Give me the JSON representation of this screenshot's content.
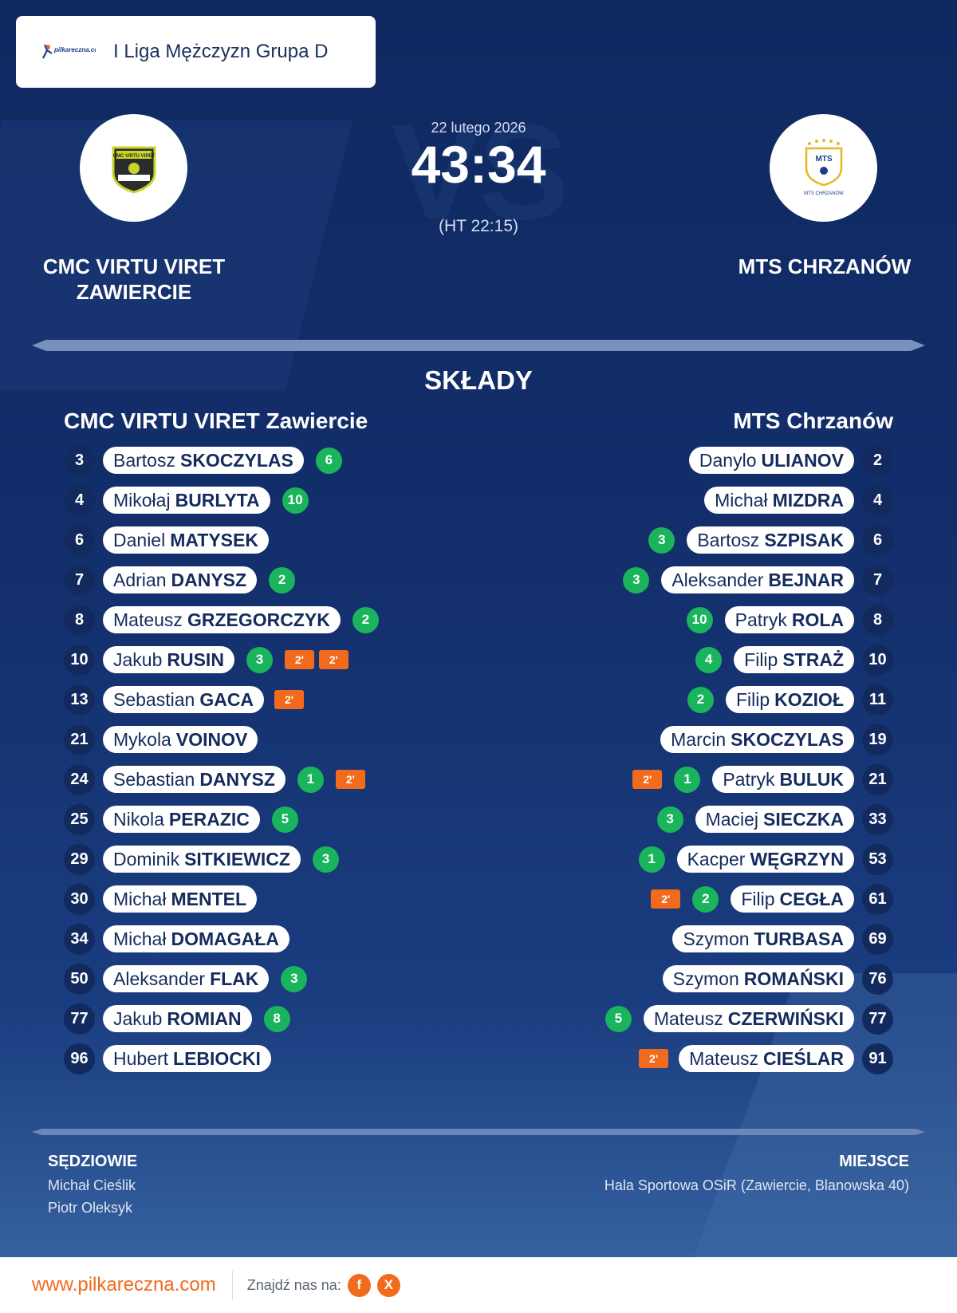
{
  "header": {
    "site_logo_text": "pilkareczna.com",
    "league": "I Liga Mężczyzn Grupa D"
  },
  "match": {
    "date": "22 lutego 2026",
    "score": "43:34",
    "half_time": "(HT 22:15)",
    "vs_watermark": "VS",
    "home": {
      "name": "CMC VIRTU VIRET ZAWIERCIE",
      "crest_text": "CMC VIRTU VIRET"
    },
    "away": {
      "name": "MTS CHRZANÓW",
      "crest_text": "MTS CHRZANÓW"
    }
  },
  "lineups": {
    "title": "SKŁADY",
    "home_team": "CMC VIRTU VIRET Zawiercie",
    "away_team": "MTS Chrzanów",
    "home": [
      {
        "number": "3",
        "first": "Bartosz",
        "last": "SKOCZYLAS",
        "goals": "6",
        "suspensions": []
      },
      {
        "number": "4",
        "first": "Mikołaj",
        "last": "BURLYTA",
        "goals": "10",
        "suspensions": []
      },
      {
        "number": "6",
        "first": "Daniel",
        "last": "MATYSEK",
        "goals": "",
        "suspensions": []
      },
      {
        "number": "7",
        "first": "Adrian",
        "last": "DANYSZ",
        "goals": "2",
        "suspensions": []
      },
      {
        "number": "8",
        "first": "Mateusz",
        "last": "GRZEGORCZYK",
        "goals": "2",
        "suspensions": []
      },
      {
        "number": "10",
        "first": "Jakub",
        "last": "RUSIN",
        "goals": "3",
        "suspensions": [
          "2'",
          "2'"
        ]
      },
      {
        "number": "13",
        "first": "Sebastian",
        "last": "GACA",
        "goals": "",
        "suspensions": [
          "2'"
        ]
      },
      {
        "number": "21",
        "first": "Mykola",
        "last": "VOINOV",
        "goals": "",
        "suspensions": []
      },
      {
        "number": "24",
        "first": "Sebastian",
        "last": "DANYSZ",
        "goals": "1",
        "suspensions": [
          "2'"
        ]
      },
      {
        "number": "25",
        "first": "Nikola",
        "last": "PERAZIC",
        "goals": "5",
        "suspensions": []
      },
      {
        "number": "29",
        "first": "Dominik",
        "last": "SITKIEWICZ",
        "goals": "3",
        "suspensions": []
      },
      {
        "number": "30",
        "first": "Michał",
        "last": "MENTEL",
        "goals": "",
        "suspensions": []
      },
      {
        "number": "34",
        "first": "Michał",
        "last": "DOMAGAŁA",
        "goals": "",
        "suspensions": []
      },
      {
        "number": "50",
        "first": "Aleksander",
        "last": "FLAK",
        "goals": "3",
        "suspensions": []
      },
      {
        "number": "77",
        "first": "Jakub",
        "last": "ROMIAN",
        "goals": "8",
        "suspensions": []
      },
      {
        "number": "96",
        "first": "Hubert",
        "last": "LEBIOCKI",
        "goals": "",
        "suspensions": []
      }
    ],
    "away": [
      {
        "number": "2",
        "first": "Danylo",
        "last": "ULIANOV",
        "goals": "",
        "suspensions": []
      },
      {
        "number": "4",
        "first": "Michał",
        "last": "MIZDRA",
        "goals": "",
        "suspensions": []
      },
      {
        "number": "6",
        "first": "Bartosz",
        "last": "SZPISAK",
        "goals": "3",
        "suspensions": []
      },
      {
        "number": "7",
        "first": "Aleksander",
        "last": "BEJNAR",
        "goals": "3",
        "suspensions": []
      },
      {
        "number": "8",
        "first": "Patryk",
        "last": "ROLA",
        "goals": "10",
        "suspensions": []
      },
      {
        "number": "10",
        "first": "Filip",
        "last": "STRAŻ",
        "goals": "4",
        "suspensions": []
      },
      {
        "number": "11",
        "first": "Filip",
        "last": "KOZIOŁ",
        "goals": "2",
        "suspensions": []
      },
      {
        "number": "19",
        "first": "Marcin",
        "last": "SKOCZYLAS",
        "goals": "",
        "suspensions": []
      },
      {
        "number": "21",
        "first": "Patryk",
        "last": "BULUK",
        "goals": "1",
        "suspensions": [
          "2'"
        ]
      },
      {
        "number": "33",
        "first": "Maciej",
        "last": "SIECZKA",
        "goals": "3",
        "suspensions": []
      },
      {
        "number": "53",
        "first": "Kacper",
        "last": "WĘGRZYN",
        "goals": "1",
        "suspensions": []
      },
      {
        "number": "61",
        "first": "Filip",
        "last": "CEGŁA",
        "goals": "2",
        "suspensions": [
          "2'"
        ]
      },
      {
        "number": "69",
        "first": "Szymon",
        "last": "TURBASA",
        "goals": "",
        "suspensions": []
      },
      {
        "number": "76",
        "first": "Szymon",
        "last": "ROMAŃSKI",
        "goals": "",
        "suspensions": []
      },
      {
        "number": "77",
        "first": "Mateusz",
        "last": "CZERWIŃSKI",
        "goals": "5",
        "suspensions": []
      },
      {
        "number": "91",
        "first": "Mateusz",
        "last": "CIEŚLAR",
        "goals": "",
        "suspensions": [
          "2'"
        ]
      }
    ]
  },
  "officials": {
    "label": "SĘDZIOWIE",
    "names": [
      "Michał Cieślik",
      "Piotr Oleksyk"
    ]
  },
  "venue": {
    "label": "MIEJSCE",
    "name": "Hala Sportowa OSiR (Zawiercie, Blanowska 40)"
  },
  "footer": {
    "site": "www.pilkareczna.com",
    "find_us": "Znajdź nas na:",
    "social": [
      {
        "icon": "facebook-icon",
        "glyph": "f"
      },
      {
        "icon": "x-icon",
        "glyph": "X"
      }
    ]
  },
  "colors": {
    "background": "#132f6c",
    "goal": "#19b45c",
    "suspension": "#f26a1b",
    "accent": "#f26a1b"
  }
}
